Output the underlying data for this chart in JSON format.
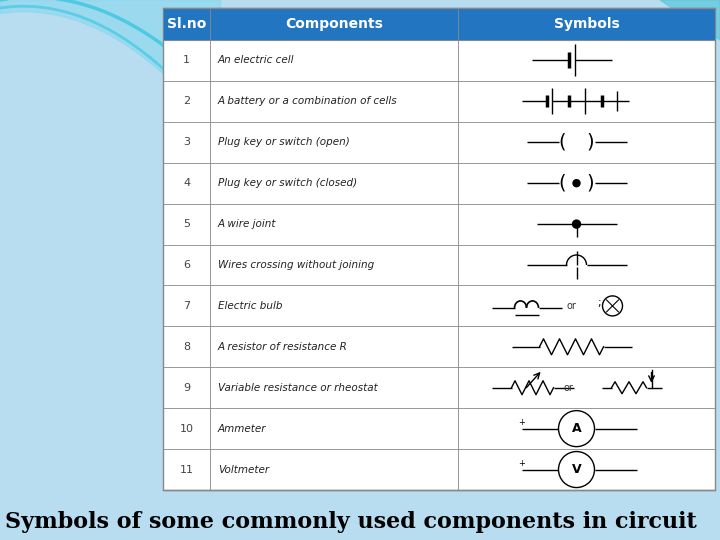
{
  "title": "Symbols of some commonly used components in circuit",
  "header": [
    "Sl.no",
    "Components",
    "Symbols"
  ],
  "header_bg": "#2275C0",
  "header_fg": "#FFFFFF",
  "table_bg": "#FFFFFF",
  "border_color": "#888888",
  "rows": [
    {
      "no": "1",
      "component": "An electric cell"
    },
    {
      "no": "2",
      "component": "A battery or a combination of cells"
    },
    {
      "no": "3",
      "component": "Plug key or switch (open)"
    },
    {
      "no": "4",
      "component": "Plug key or switch (closed)"
    },
    {
      "no": "5",
      "component": "A wire joint"
    },
    {
      "no": "6",
      "component": "Wires crossing without joining"
    },
    {
      "no": "7",
      "component": "Electric bulb"
    },
    {
      "no": "8",
      "component": "A resistor of resistance R"
    },
    {
      "no": "9",
      "component": "Variable resistance or rheostat"
    },
    {
      "no": "10",
      "component": "Ammeter"
    },
    {
      "no": "11",
      "component": "Voltmeter"
    }
  ],
  "bg_color": "#B8DCF0",
  "title_fontsize": 16,
  "title_color": "#000000"
}
